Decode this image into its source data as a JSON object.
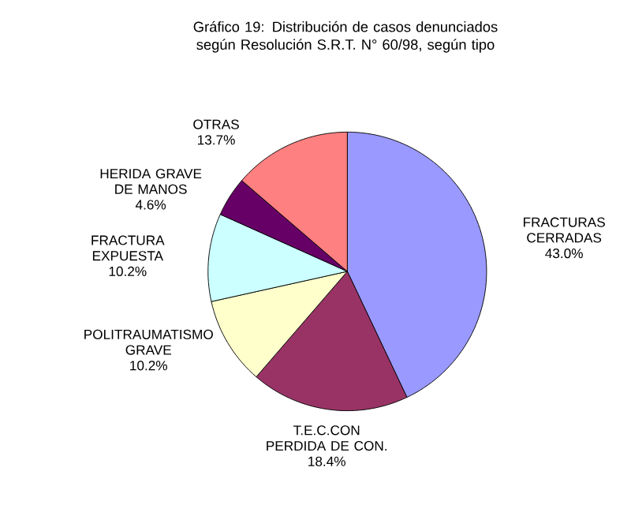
{
  "chart_data": {
    "type": "pie",
    "title": "Gráfico 19: Distribución de casos denunciados según Resolución S.R.T. N° 60/98, según tipo",
    "categories": [
      "FRACTURAS CERRADAS",
      "T.E.C.CON PERDIDA DE CON.",
      "POLITRAUMATISMO GRAVE",
      "FRACTURA EXPUESTA",
      "HERIDA GRAVE DE MANOS",
      "OTRAS"
    ],
    "values": [
      43.0,
      18.4,
      10.2,
      10.2,
      4.6,
      13.7
    ],
    "value_labels": [
      "43.0%",
      "18.4%",
      "10.2%",
      "10.2%",
      "4.6%",
      "13.7%"
    ],
    "colors": [
      "#9999ff",
      "#993366",
      "#ffffcc",
      "#ccffff",
      "#660066",
      "#ff8080"
    ]
  }
}
